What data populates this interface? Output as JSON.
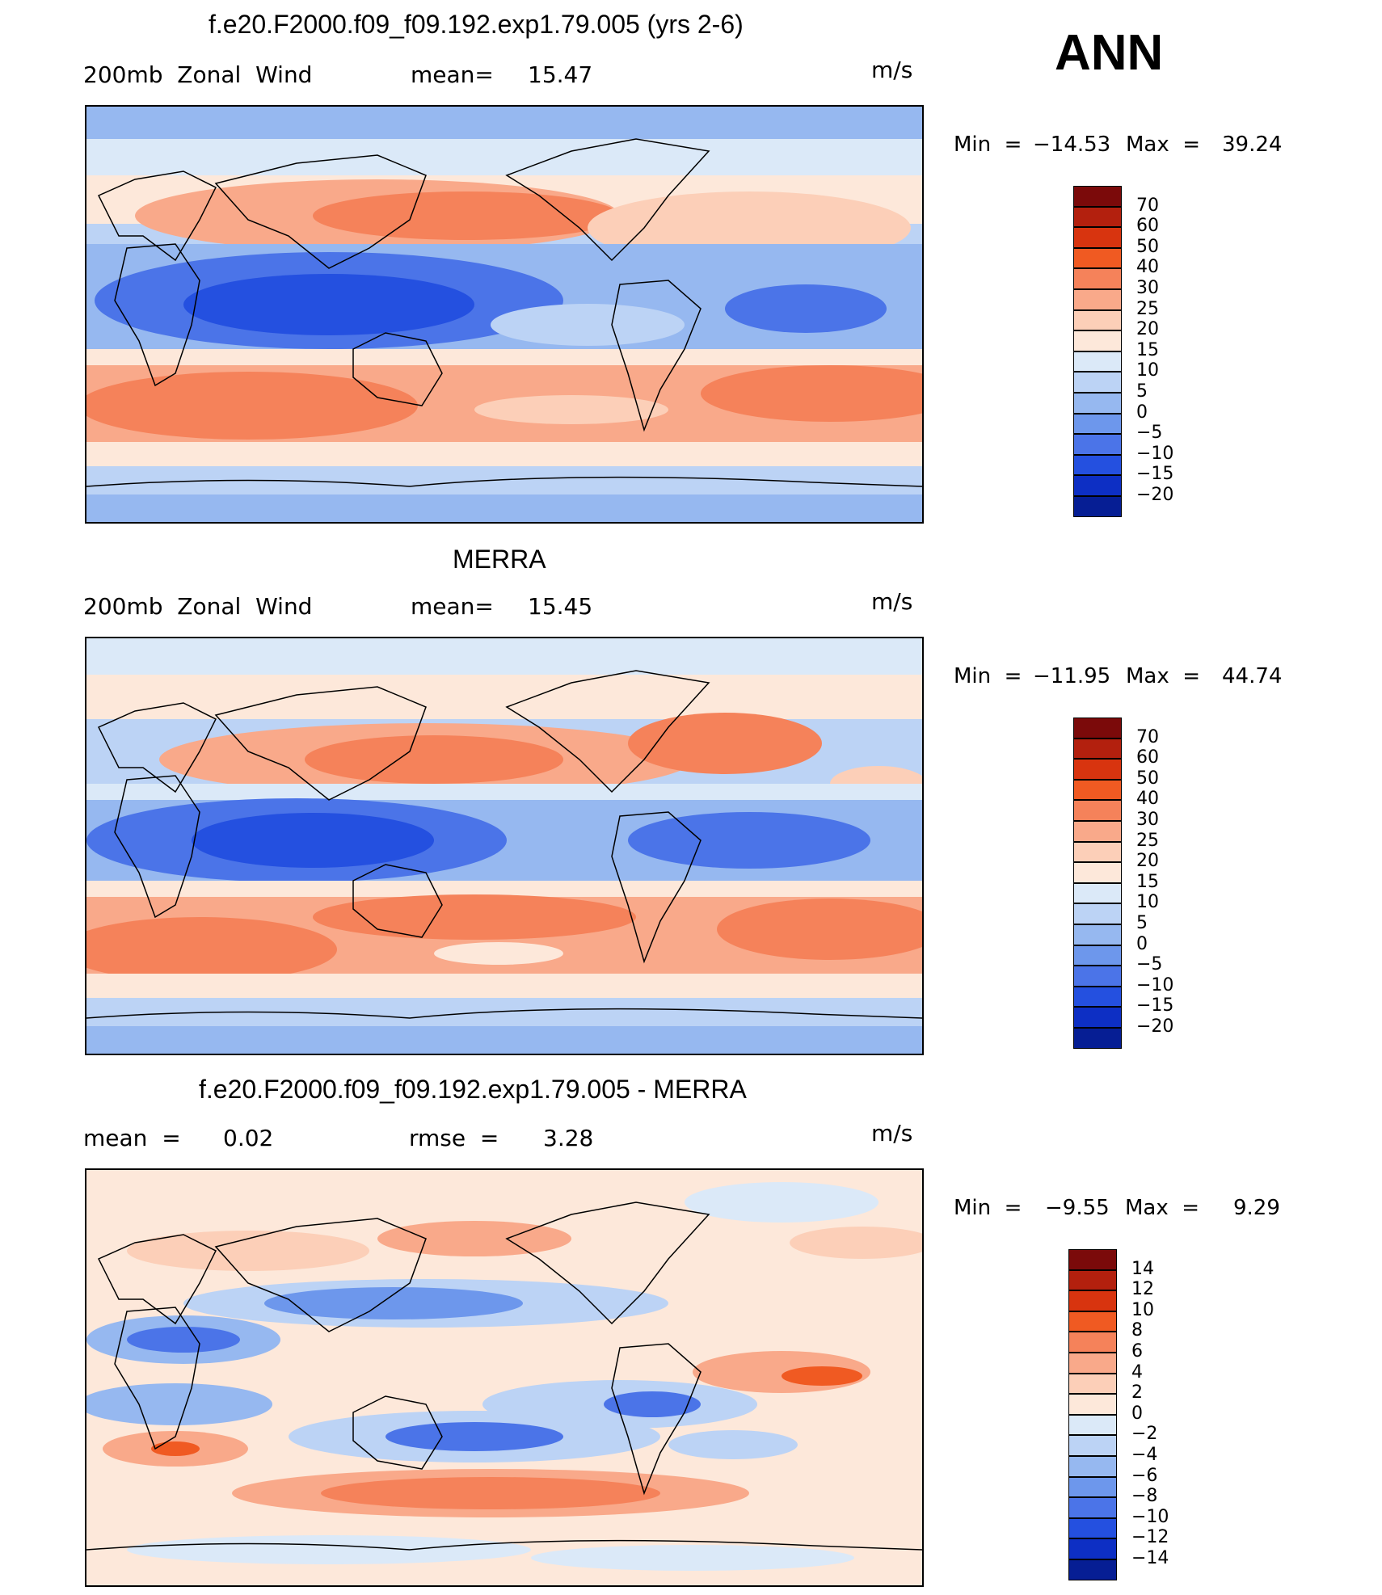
{
  "season": "ANN",
  "panels": [
    {
      "title": "f.e20.F2000.f09_f09.192.exp1.79.005 (yrs 2-6)",
      "field_label": "200mb  Zonal  Wind",
      "stat_label": "mean=",
      "stat_value": "15.47",
      "units": "m/s",
      "min_label": "Min  =",
      "min_value": "−14.53",
      "max_label": "Max  =",
      "max_value": "39.24"
    },
    {
      "title": "MERRA",
      "field_label": "200mb  Zonal  Wind",
      "stat_label": "mean=",
      "stat_value": "15.45",
      "units": "m/s",
      "min_label": "Min  =",
      "min_value": "−11.95",
      "max_label": "Max  =",
      "max_value": "44.74"
    },
    {
      "title": "f.e20.F2000.f09_f09.192.exp1.79.005 - MERRA",
      "field_label": "mean  =",
      "field_value": "0.02",
      "stat_label": "rmse  =",
      "stat_value": "3.28",
      "units": "m/s",
      "min_label": "Min  =",
      "min_value": "−9.55",
      "max_label": "Max  =",
      "max_value": "9.29"
    }
  ],
  "colorbars": [
    {
      "levels": [
        "70",
        "60",
        "50",
        "40",
        "30",
        "25",
        "20",
        "15",
        "10",
        "5",
        "0",
        "−5",
        "−10",
        "−15",
        "−20"
      ],
      "colors": [
        "#7b0a0a",
        "#b3200e",
        "#d8340f",
        "#f05a22",
        "#f5825a",
        "#f9a98a",
        "#fccfb8",
        "#fde8da",
        "#dbe9f8",
        "#bcd3f5",
        "#96b8f0",
        "#6d97ec",
        "#4b74e8",
        "#2450e0",
        "#0d2fc4",
        "#061e94"
      ]
    },
    {
      "levels": [
        "70",
        "60",
        "50",
        "40",
        "30",
        "25",
        "20",
        "15",
        "10",
        "5",
        "0",
        "−5",
        "−10",
        "−15",
        "−20"
      ],
      "colors": [
        "#7b0a0a",
        "#b3200e",
        "#d8340f",
        "#f05a22",
        "#f5825a",
        "#f9a98a",
        "#fccfb8",
        "#fde8da",
        "#dbe9f8",
        "#bcd3f5",
        "#96b8f0",
        "#6d97ec",
        "#4b74e8",
        "#2450e0",
        "#0d2fc4",
        "#061e94"
      ]
    },
    {
      "levels": [
        "14",
        "12",
        "10",
        "8",
        "6",
        "4",
        "2",
        "0",
        "−2",
        "−4",
        "−6",
        "−8",
        "−10",
        "−12",
        "−14"
      ],
      "colors": [
        "#7b0a0a",
        "#b3200e",
        "#d8340f",
        "#f05a22",
        "#f5825a",
        "#f9a98a",
        "#fccfb8",
        "#fde8da",
        "#dbe9f8",
        "#bcd3f5",
        "#96b8f0",
        "#6d97ec",
        "#4b74e8",
        "#2450e0",
        "#0d2fc4",
        "#061e94"
      ]
    }
  ]
}
